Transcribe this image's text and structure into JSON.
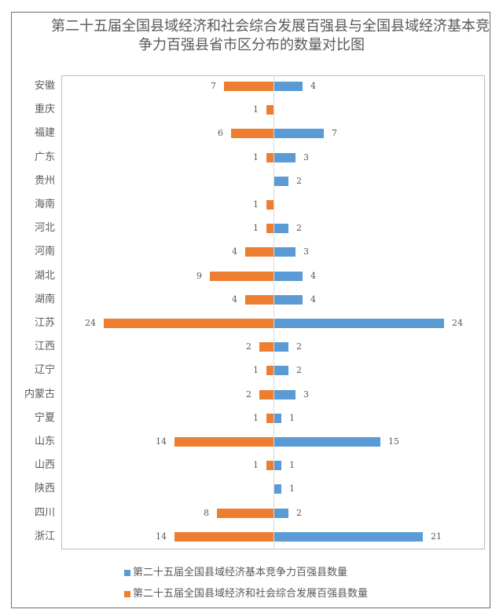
{
  "chart_data": {
    "type": "bar",
    "orientation": "horizontal-diverging",
    "title": "第二十五届全国县域经济和社会综合发展百强县与全国县域经济基本竞争力百强县省市区分布的数量对比图",
    "title_lines": [
      "第二十五届全国县域经济和社会综合发展百强县与全国县域经济基本竞",
      "争力百强县省市区分布的数量对比图"
    ],
    "xlabel": "",
    "ylabel": "",
    "categories": [
      "安徽",
      "重庆",
      "福建",
      "广东",
      "贵州",
      "海南",
      "河北",
      "河南",
      "湖北",
      "湖南",
      "江苏",
      "江西",
      "辽宁",
      "内蒙古",
      "宁夏",
      "山东",
      "山西",
      "陕西",
      "四川",
      "浙江"
    ],
    "series": [
      {
        "name": "第二十五届全国县域经济基本竞争力百强县数量",
        "color": "#5B9BD5",
        "side": "right",
        "values": [
          4,
          null,
          7,
          3,
          2,
          null,
          2,
          3,
          4,
          4,
          24,
          2,
          2,
          3,
          1,
          15,
          1,
          1,
          2,
          21
        ]
      },
      {
        "name": "第二十五届全国县域经济和社会综合发展百强县数量",
        "color": "#ED7D31",
        "side": "left",
        "values": [
          7,
          1,
          6,
          1,
          null,
          1,
          1,
          4,
          9,
          4,
          24,
          2,
          1,
          2,
          1,
          14,
          1,
          null,
          8,
          14
        ]
      }
    ],
    "xlim": [
      -24,
      24
    ],
    "grid": false,
    "data_labels": true,
    "legend_position": "bottom"
  },
  "legend": {
    "items": [
      {
        "label": "第二十五届全国县域经济基本竞争力百强县数量",
        "color": "#5B9BD5"
      },
      {
        "label": "第二十五届全国县域经济和社会综合发展百强县数量",
        "color": "#ED7D31"
      }
    ]
  }
}
